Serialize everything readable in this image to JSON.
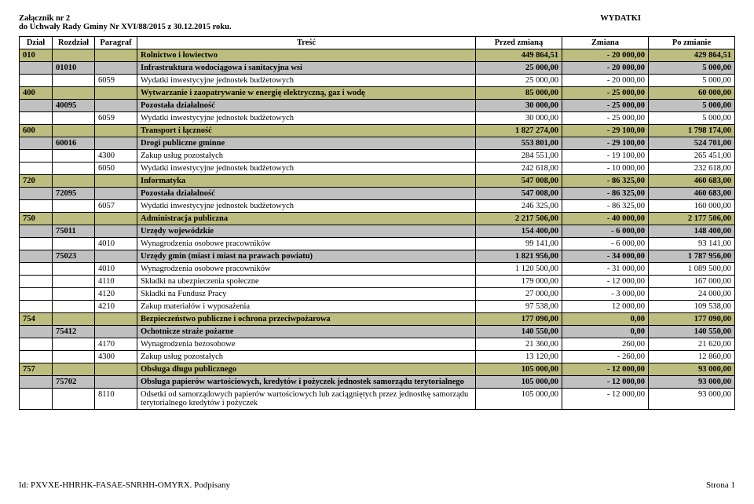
{
  "header": {
    "attachment": "Załącznik nr 2",
    "toResolution": "do Uchwały Rady Gminy Nr XVI/88/2015 z 30.12.2015 roku.",
    "title": "WYDATKI"
  },
  "columns": [
    "Dział",
    "Rozdział",
    "Paragraf",
    "Treść",
    "Przed zmianą",
    "Zmiana",
    "Po zmianie"
  ],
  "rows": [
    {
      "style": "khaki bold",
      "dzial": "010",
      "rozdzial": "",
      "paragraf": "",
      "tresc": "Rolnictwo i łowiectwo",
      "v1": "449 864,51",
      "v2": "- 20 000,00",
      "v3": "429 864,51"
    },
    {
      "style": "gray bold",
      "dzial": "",
      "rozdzial": "01010",
      "paragraf": "",
      "tresc": "Infrastruktura wodociągowa i sanitacyjna wsi",
      "v1": "25 000,00",
      "v2": "- 20 000,00",
      "v3": "5 000,00"
    },
    {
      "style": "",
      "dzial": "",
      "rozdzial": "",
      "paragraf": "6059",
      "tresc": "Wydatki inwestycyjne jednostek budżetowych",
      "v1": "25 000,00",
      "v2": "- 20 000,00",
      "v3": "5 000,00"
    },
    {
      "style": "khaki bold",
      "dzial": "400",
      "rozdzial": "",
      "paragraf": "",
      "tresc": "Wytwarzanie i zaopatrywanie w energię elektryczną, gaz i wodę",
      "v1": "85 000,00",
      "v2": "- 25 000,00",
      "v3": "60 000,00"
    },
    {
      "style": "gray bold",
      "dzial": "",
      "rozdzial": "40095",
      "paragraf": "",
      "tresc": "Pozostała działalność",
      "v1": "30 000,00",
      "v2": "- 25 000,00",
      "v3": "5 000,00"
    },
    {
      "style": "",
      "dzial": "",
      "rozdzial": "",
      "paragraf": "6059",
      "tresc": "Wydatki inwestycyjne jednostek budżetowych",
      "v1": "30 000,00",
      "v2": "- 25 000,00",
      "v3": "5 000,00"
    },
    {
      "style": "khaki bold",
      "dzial": "600",
      "rozdzial": "",
      "paragraf": "",
      "tresc": "Transport i łączność",
      "v1": "1 827 274,00",
      "v2": "- 29 100,00",
      "v3": "1 798 174,00"
    },
    {
      "style": "gray bold",
      "dzial": "",
      "rozdzial": "60016",
      "paragraf": "",
      "tresc": "Drogi publiczne gminne",
      "v1": "553 801,00",
      "v2": "- 29 100,00",
      "v3": "524 701,00"
    },
    {
      "style": "",
      "dzial": "",
      "rozdzial": "",
      "paragraf": "4300",
      "tresc": "Zakup usług pozostałych",
      "v1": "284 551,00",
      "v2": "- 19 100,00",
      "v3": "265 451,00"
    },
    {
      "style": "",
      "dzial": "",
      "rozdzial": "",
      "paragraf": "6050",
      "tresc": "Wydatki inwestycyjne jednostek budżetowych",
      "v1": "242 618,00",
      "v2": "- 10 000,00",
      "v3": "232 618,00"
    },
    {
      "style": "khaki bold",
      "dzial": "720",
      "rozdzial": "",
      "paragraf": "",
      "tresc": "Informatyka",
      "v1": "547 008,00",
      "v2": "- 86 325,00",
      "v3": "460 683,00"
    },
    {
      "style": "gray bold",
      "dzial": "",
      "rozdzial": "72095",
      "paragraf": "",
      "tresc": "Pozostała działalność",
      "v1": "547 008,00",
      "v2": "- 86 325,00",
      "v3": "460 683,00"
    },
    {
      "style": "",
      "dzial": "",
      "rozdzial": "",
      "paragraf": "6057",
      "tresc": "Wydatki inwestycyjne jednostek budżetowych",
      "v1": "246 325,00",
      "v2": "- 86 325,00",
      "v3": "160 000,00"
    },
    {
      "style": "khaki bold",
      "dzial": "750",
      "rozdzial": "",
      "paragraf": "",
      "tresc": "Administracja publiczna",
      "v1": "2 217 506,00",
      "v2": "- 40 000,00",
      "v3": "2 177 506,00"
    },
    {
      "style": "gray bold",
      "dzial": "",
      "rozdzial": "75011",
      "paragraf": "",
      "tresc": "Urzędy wojewódzkie",
      "v1": "154 400,00",
      "v2": "- 6 000,00",
      "v3": "148 400,00"
    },
    {
      "style": "",
      "dzial": "",
      "rozdzial": "",
      "paragraf": "4010",
      "tresc": "Wynagrodzenia osobowe pracowników",
      "v1": "99 141,00",
      "v2": "- 6 000,00",
      "v3": "93 141,00"
    },
    {
      "style": "gray bold",
      "dzial": "",
      "rozdzial": "75023",
      "paragraf": "",
      "tresc": "Urzędy gmin (miast i miast na prawach powiatu)",
      "v1": "1 821 956,00",
      "v2": "- 34 000,00",
      "v3": "1 787 956,00"
    },
    {
      "style": "",
      "dzial": "",
      "rozdzial": "",
      "paragraf": "4010",
      "tresc": "Wynagrodzenia osobowe pracowników",
      "v1": "1 120 500,00",
      "v2": "- 31 000,00",
      "v3": "1 089 500,00"
    },
    {
      "style": "",
      "dzial": "",
      "rozdzial": "",
      "paragraf": "4110",
      "tresc": "Składki na ubezpieczenia społeczne",
      "v1": "179 000,00",
      "v2": "- 12 000,00",
      "v3": "167 000,00"
    },
    {
      "style": "",
      "dzial": "",
      "rozdzial": "",
      "paragraf": "4120",
      "tresc": "Składki na Fundusz Pracy",
      "v1": "27 000,00",
      "v2": "- 3 000,00",
      "v3": "24 000,00"
    },
    {
      "style": "",
      "dzial": "",
      "rozdzial": "",
      "paragraf": "4210",
      "tresc": "Zakup materiałów i wyposażenia",
      "v1": "97 538,00",
      "v2": "12 000,00",
      "v3": "109 538,00"
    },
    {
      "style": "khaki bold",
      "dzial": "754",
      "rozdzial": "",
      "paragraf": "",
      "tresc": "Bezpieczeństwo publiczne i ochrona przeciwpożarowa",
      "v1": "177 090,00",
      "v2": "0,00",
      "v3": "177 090,00"
    },
    {
      "style": "gray bold",
      "dzial": "",
      "rozdzial": "75412",
      "paragraf": "",
      "tresc": "Ochotnicze straże pożarne",
      "v1": "140 550,00",
      "v2": "0,00",
      "v3": "140 550,00"
    },
    {
      "style": "",
      "dzial": "",
      "rozdzial": "",
      "paragraf": "4170",
      "tresc": "Wynagrodzenia bezosobowe",
      "v1": "21 360,00",
      "v2": "260,00",
      "v3": "21 620,00"
    },
    {
      "style": "",
      "dzial": "",
      "rozdzial": "",
      "paragraf": "4300",
      "tresc": "Zakup usług pozostałych",
      "v1": "13 120,00",
      "v2": "- 260,00",
      "v3": "12 860,00"
    },
    {
      "style": "khaki bold",
      "dzial": "757",
      "rozdzial": "",
      "paragraf": "",
      "tresc": "Obsługa długu publicznego",
      "v1": "105 000,00",
      "v2": "- 12 000,00",
      "v3": "93 000,00"
    },
    {
      "style": "gray bold",
      "dzial": "",
      "rozdzial": "75702",
      "paragraf": "",
      "tresc": "Obsługa papierów wartościowych, kredytów i pożyczek jednostek samorządu terytorialnego",
      "v1": "105 000,00",
      "v2": "- 12 000,00",
      "v3": "93 000,00"
    },
    {
      "style": "",
      "dzial": "",
      "rozdzial": "",
      "paragraf": "8110",
      "tresc": "Odsetki od samorządowych papierów wartościowych lub zaciągniętych przez jednostkę samorządu terytorialnego kredytów i pożyczek",
      "v1": "105 000,00",
      "v2": "- 12 000,00",
      "v3": "93 000,00"
    }
  ],
  "footer": {
    "left": "Id: PXVXE-HHRHK-FASAE-SNRHH-OMYRX. Podpisany",
    "right": "Strona 1"
  }
}
